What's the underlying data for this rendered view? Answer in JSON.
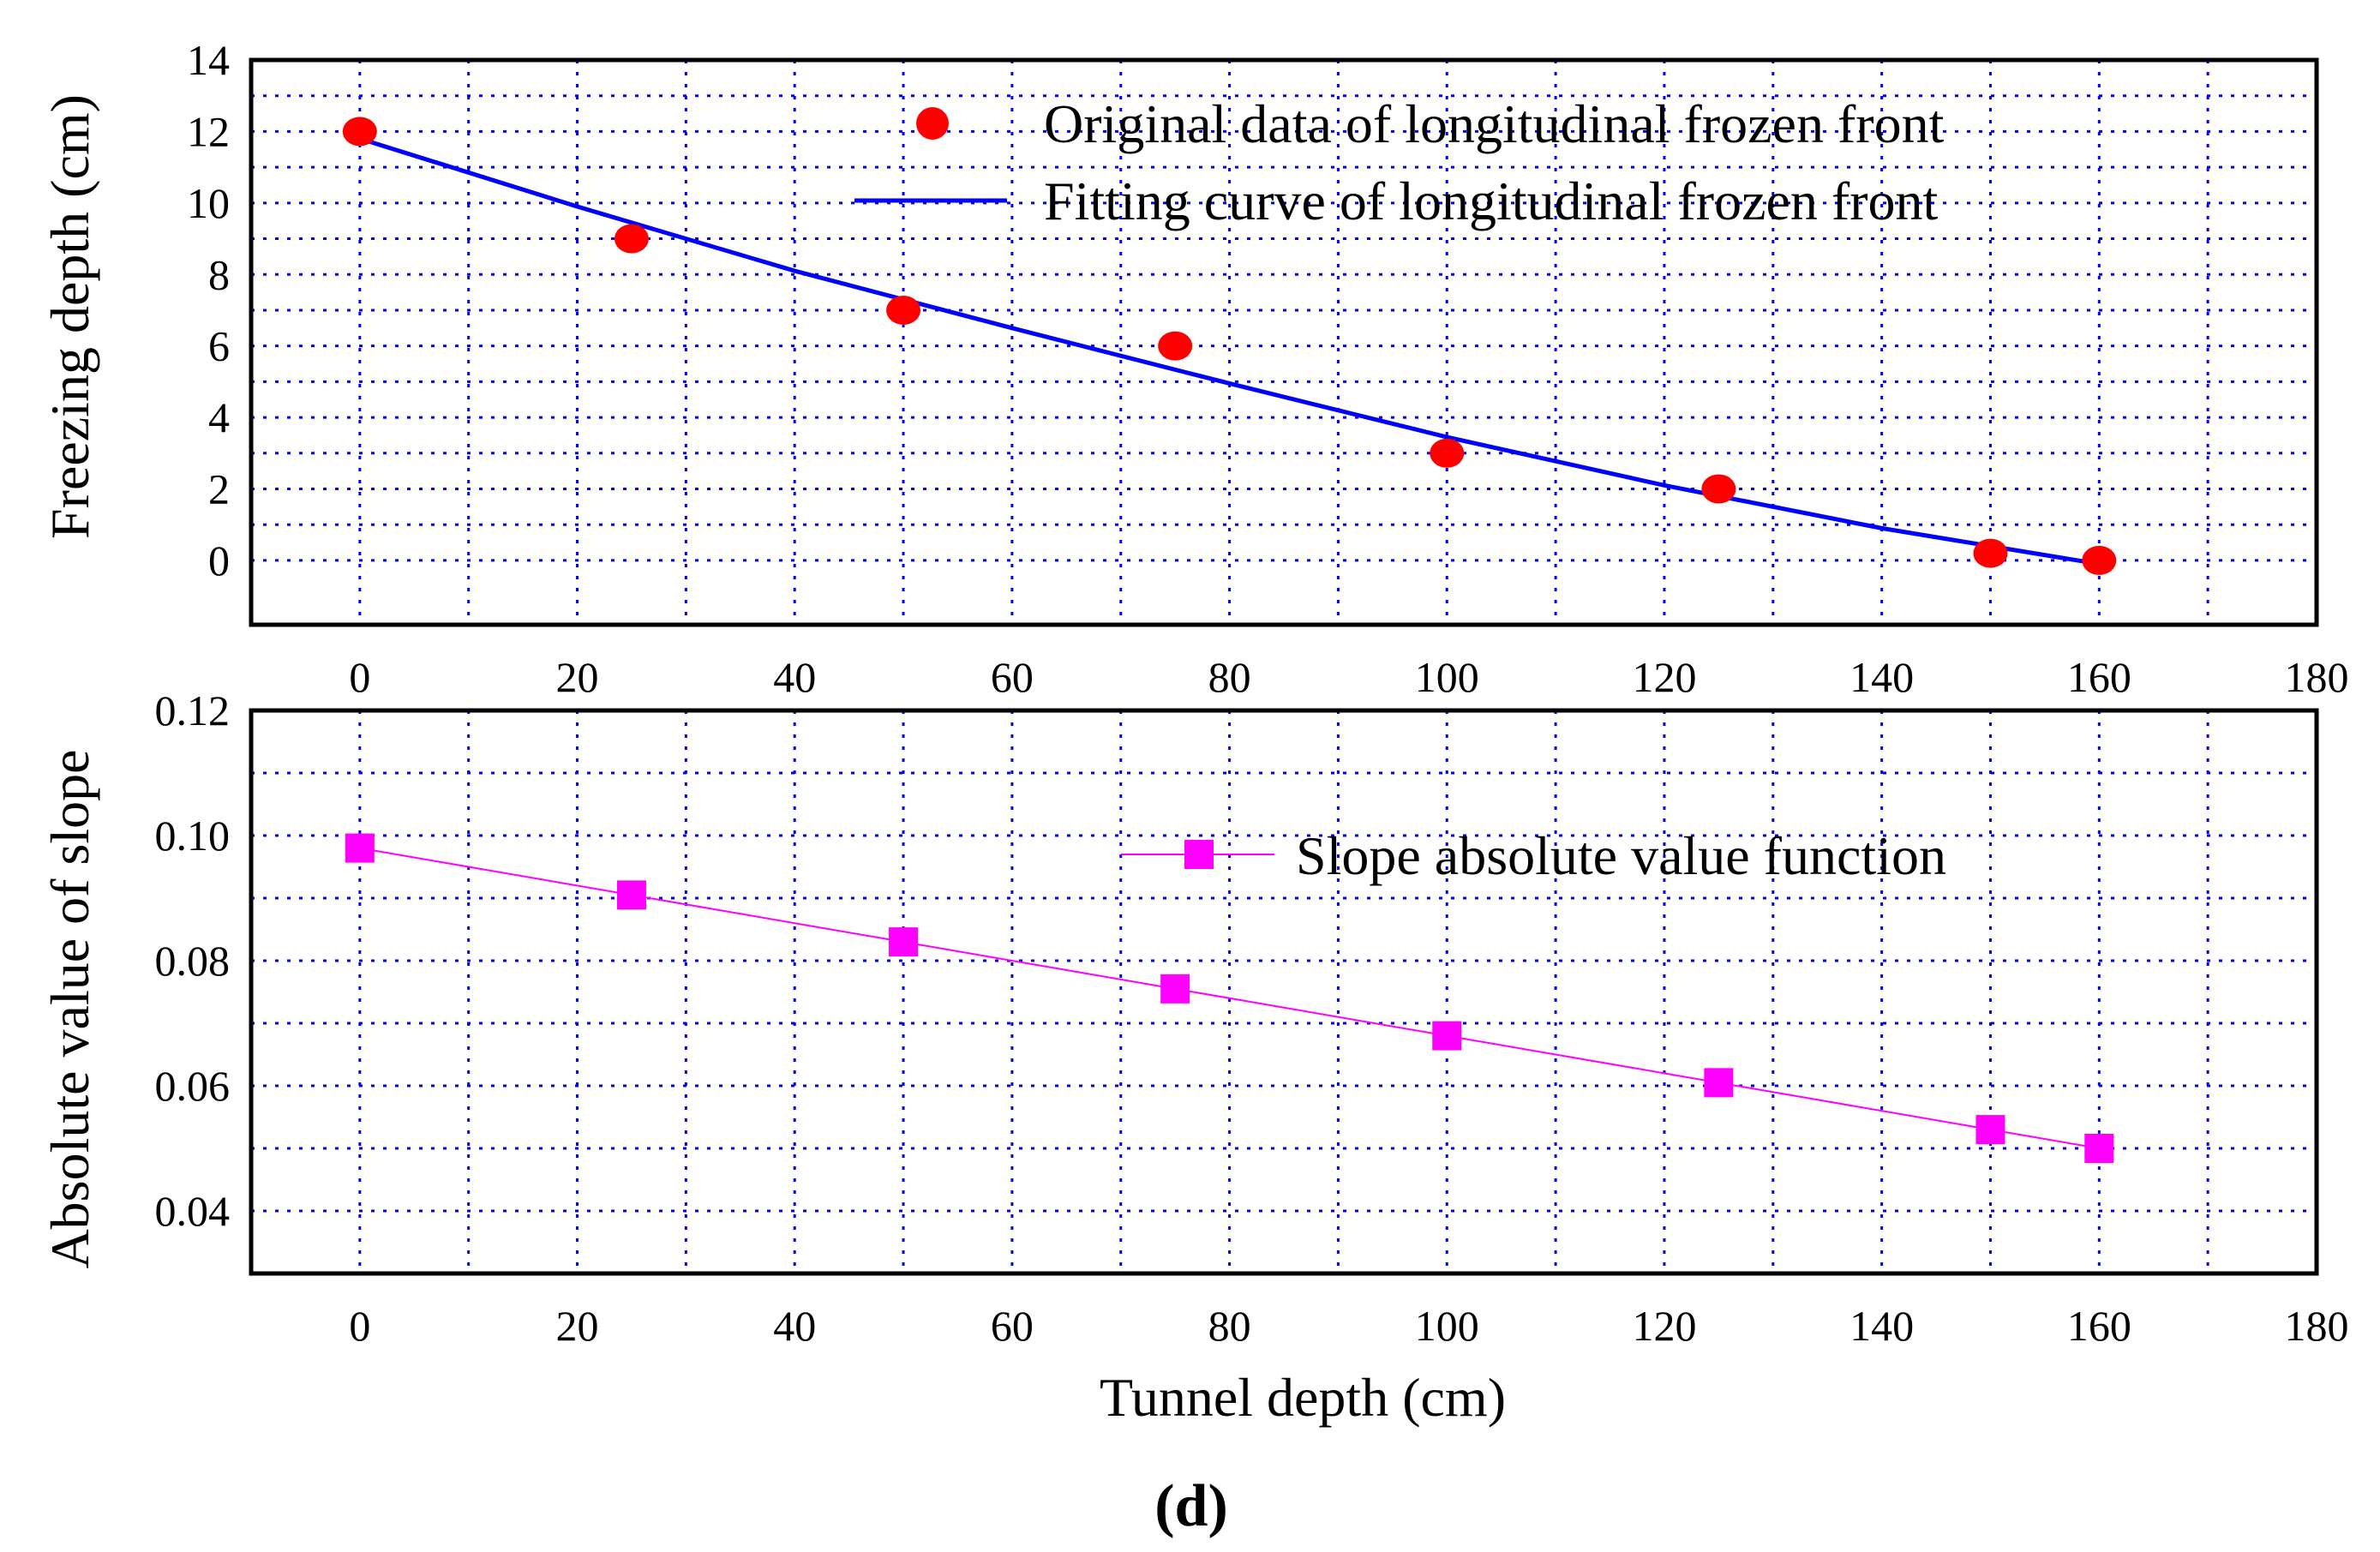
{
  "figure": {
    "caption": "(d)"
  },
  "chart_data": [
    {
      "type": "scatter",
      "ylabel": "Freezing depth (cm)",
      "xlabel": "",
      "xlim": [
        -10,
        180
      ],
      "ylim": [
        -1.8,
        14
      ],
      "x_ticks": [
        "0",
        "20",
        "40",
        "60",
        "80",
        "100",
        "120",
        "140",
        "160",
        "180"
      ],
      "x_tick_values": [
        0,
        20,
        40,
        60,
        80,
        100,
        120,
        140,
        160,
        180
      ],
      "y_ticks": [
        "0",
        "2",
        "4",
        "6",
        "8",
        "10",
        "12",
        "14"
      ],
      "y_tick_values": [
        0,
        2,
        4,
        6,
        8,
        10,
        12,
        14
      ],
      "grid": true,
      "legend_position": "top-right",
      "series": [
        {
          "name": "Original data of longitudinal frozen front",
          "kind": "markers",
          "marker": "circle",
          "color": "#ff0000",
          "x": [
            0,
            25,
            50,
            75,
            100,
            125,
            150,
            160
          ],
          "y": [
            12,
            9,
            7,
            6,
            3,
            2,
            0.2,
            0
          ]
        },
        {
          "name": "Fitting curve of longitudinal frozen front",
          "kind": "line",
          "color": "#0000ff",
          "x": [
            0,
            20,
            40,
            60,
            80,
            100,
            120,
            140,
            160
          ],
          "y": [
            11.8,
            9.9,
            8.1,
            6.5,
            4.95,
            3.45,
            2.1,
            0.9,
            -0.1
          ]
        }
      ]
    },
    {
      "type": "line",
      "ylabel": "Absolute value of slope",
      "xlabel": "Tunnel depth (cm)",
      "xlim": [
        -10,
        180
      ],
      "ylim": [
        0.03,
        0.12
      ],
      "x_ticks": [
        "0",
        "20",
        "40",
        "60",
        "80",
        "100",
        "120",
        "140",
        "160",
        "180"
      ],
      "x_tick_values": [
        0,
        20,
        40,
        60,
        80,
        100,
        120,
        140,
        160,
        180
      ],
      "y_ticks": [
        "0.04",
        "0.06",
        "0.08",
        "0.10",
        "0.12"
      ],
      "y_tick_values": [
        0.04,
        0.06,
        0.08,
        0.1,
        0.12
      ],
      "grid": true,
      "legend_position": "top-right",
      "series": [
        {
          "name": "Slope absolute value function",
          "marker": "square",
          "color": "#ff00ff",
          "x": [
            0,
            25,
            50,
            75,
            100,
            125,
            150,
            160
          ],
          "y": [
            0.098,
            0.0905,
            0.083,
            0.0755,
            0.068,
            0.0605,
            0.053,
            0.05
          ]
        }
      ]
    }
  ]
}
